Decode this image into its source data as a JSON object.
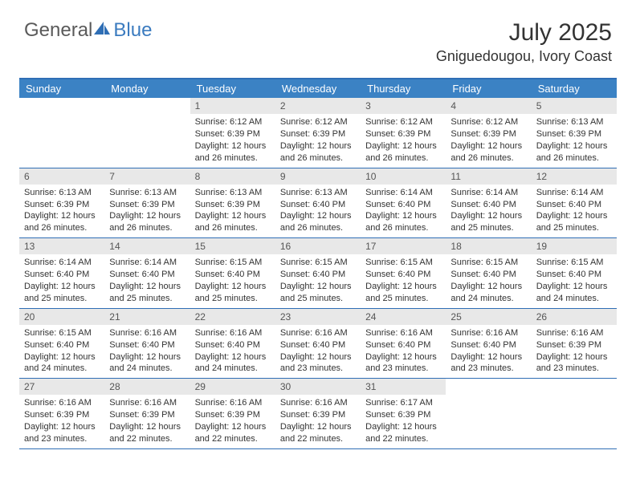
{
  "brand": {
    "text_general": "General",
    "text_blue": "Blue",
    "icon_color": "#2f6eb5"
  },
  "title": "July 2025",
  "location": "Gniguedougou, Ivory Coast",
  "colors": {
    "header_bg": "#3b82c4",
    "border": "#2f6eb5",
    "daynum_bg": "#e8e8e8",
    "text": "#333333",
    "white": "#ffffff"
  },
  "weekdays": [
    "Sunday",
    "Monday",
    "Tuesday",
    "Wednesday",
    "Thursday",
    "Friday",
    "Saturday"
  ],
  "weeks": [
    [
      null,
      null,
      {
        "n": "1",
        "sr": "Sunrise: 6:12 AM",
        "ss": "Sunset: 6:39 PM",
        "dl": "Daylight: 12 hours and 26 minutes."
      },
      {
        "n": "2",
        "sr": "Sunrise: 6:12 AM",
        "ss": "Sunset: 6:39 PM",
        "dl": "Daylight: 12 hours and 26 minutes."
      },
      {
        "n": "3",
        "sr": "Sunrise: 6:12 AM",
        "ss": "Sunset: 6:39 PM",
        "dl": "Daylight: 12 hours and 26 minutes."
      },
      {
        "n": "4",
        "sr": "Sunrise: 6:12 AM",
        "ss": "Sunset: 6:39 PM",
        "dl": "Daylight: 12 hours and 26 minutes."
      },
      {
        "n": "5",
        "sr": "Sunrise: 6:13 AM",
        "ss": "Sunset: 6:39 PM",
        "dl": "Daylight: 12 hours and 26 minutes."
      }
    ],
    [
      {
        "n": "6",
        "sr": "Sunrise: 6:13 AM",
        "ss": "Sunset: 6:39 PM",
        "dl": "Daylight: 12 hours and 26 minutes."
      },
      {
        "n": "7",
        "sr": "Sunrise: 6:13 AM",
        "ss": "Sunset: 6:39 PM",
        "dl": "Daylight: 12 hours and 26 minutes."
      },
      {
        "n": "8",
        "sr": "Sunrise: 6:13 AM",
        "ss": "Sunset: 6:39 PM",
        "dl": "Daylight: 12 hours and 26 minutes."
      },
      {
        "n": "9",
        "sr": "Sunrise: 6:13 AM",
        "ss": "Sunset: 6:40 PM",
        "dl": "Daylight: 12 hours and 26 minutes."
      },
      {
        "n": "10",
        "sr": "Sunrise: 6:14 AM",
        "ss": "Sunset: 6:40 PM",
        "dl": "Daylight: 12 hours and 26 minutes."
      },
      {
        "n": "11",
        "sr": "Sunrise: 6:14 AM",
        "ss": "Sunset: 6:40 PM",
        "dl": "Daylight: 12 hours and 25 minutes."
      },
      {
        "n": "12",
        "sr": "Sunrise: 6:14 AM",
        "ss": "Sunset: 6:40 PM",
        "dl": "Daylight: 12 hours and 25 minutes."
      }
    ],
    [
      {
        "n": "13",
        "sr": "Sunrise: 6:14 AM",
        "ss": "Sunset: 6:40 PM",
        "dl": "Daylight: 12 hours and 25 minutes."
      },
      {
        "n": "14",
        "sr": "Sunrise: 6:14 AM",
        "ss": "Sunset: 6:40 PM",
        "dl": "Daylight: 12 hours and 25 minutes."
      },
      {
        "n": "15",
        "sr": "Sunrise: 6:15 AM",
        "ss": "Sunset: 6:40 PM",
        "dl": "Daylight: 12 hours and 25 minutes."
      },
      {
        "n": "16",
        "sr": "Sunrise: 6:15 AM",
        "ss": "Sunset: 6:40 PM",
        "dl": "Daylight: 12 hours and 25 minutes."
      },
      {
        "n": "17",
        "sr": "Sunrise: 6:15 AM",
        "ss": "Sunset: 6:40 PM",
        "dl": "Daylight: 12 hours and 25 minutes."
      },
      {
        "n": "18",
        "sr": "Sunrise: 6:15 AM",
        "ss": "Sunset: 6:40 PM",
        "dl": "Daylight: 12 hours and 24 minutes."
      },
      {
        "n": "19",
        "sr": "Sunrise: 6:15 AM",
        "ss": "Sunset: 6:40 PM",
        "dl": "Daylight: 12 hours and 24 minutes."
      }
    ],
    [
      {
        "n": "20",
        "sr": "Sunrise: 6:15 AM",
        "ss": "Sunset: 6:40 PM",
        "dl": "Daylight: 12 hours and 24 minutes."
      },
      {
        "n": "21",
        "sr": "Sunrise: 6:16 AM",
        "ss": "Sunset: 6:40 PM",
        "dl": "Daylight: 12 hours and 24 minutes."
      },
      {
        "n": "22",
        "sr": "Sunrise: 6:16 AM",
        "ss": "Sunset: 6:40 PM",
        "dl": "Daylight: 12 hours and 24 minutes."
      },
      {
        "n": "23",
        "sr": "Sunrise: 6:16 AM",
        "ss": "Sunset: 6:40 PM",
        "dl": "Daylight: 12 hours and 23 minutes."
      },
      {
        "n": "24",
        "sr": "Sunrise: 6:16 AM",
        "ss": "Sunset: 6:40 PM",
        "dl": "Daylight: 12 hours and 23 minutes."
      },
      {
        "n": "25",
        "sr": "Sunrise: 6:16 AM",
        "ss": "Sunset: 6:40 PM",
        "dl": "Daylight: 12 hours and 23 minutes."
      },
      {
        "n": "26",
        "sr": "Sunrise: 6:16 AM",
        "ss": "Sunset: 6:39 PM",
        "dl": "Daylight: 12 hours and 23 minutes."
      }
    ],
    [
      {
        "n": "27",
        "sr": "Sunrise: 6:16 AM",
        "ss": "Sunset: 6:39 PM",
        "dl": "Daylight: 12 hours and 23 minutes."
      },
      {
        "n": "28",
        "sr": "Sunrise: 6:16 AM",
        "ss": "Sunset: 6:39 PM",
        "dl": "Daylight: 12 hours and 22 minutes."
      },
      {
        "n": "29",
        "sr": "Sunrise: 6:16 AM",
        "ss": "Sunset: 6:39 PM",
        "dl": "Daylight: 12 hours and 22 minutes."
      },
      {
        "n": "30",
        "sr": "Sunrise: 6:16 AM",
        "ss": "Sunset: 6:39 PM",
        "dl": "Daylight: 12 hours and 22 minutes."
      },
      {
        "n": "31",
        "sr": "Sunrise: 6:17 AM",
        "ss": "Sunset: 6:39 PM",
        "dl": "Daylight: 12 hours and 22 minutes."
      },
      null,
      null
    ]
  ]
}
